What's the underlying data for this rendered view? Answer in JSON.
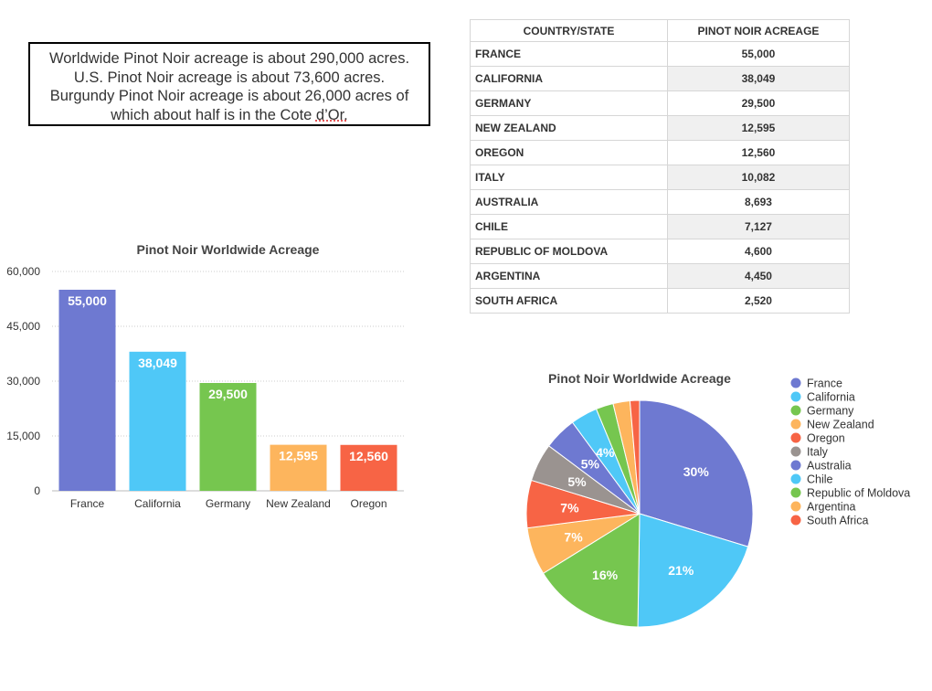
{
  "note": {
    "line1": "Worldwide Pinot Noir acreage is about 290,000 acres.",
    "line2": "U.S. Pinot Noir acreage is about 73,600 acres.",
    "line3_prefix": "Burgundy Pinot Noir acreage is about 26,000 acres of which about half is in the Cote ",
    "line3_suffix": "d’Or."
  },
  "table": {
    "headers": [
      "COUNTRY/STATE",
      "PINOT NOIR ACREAGE"
    ],
    "rows": [
      {
        "country": "FRANCE",
        "acreage": "55,000"
      },
      {
        "country": "CALIFORNIA",
        "acreage": "38,049"
      },
      {
        "country": "GERMANY",
        "acreage": "29,500"
      },
      {
        "country": "NEW ZEALAND",
        "acreage": "12,595"
      },
      {
        "country": "OREGON",
        "acreage": "12,560"
      },
      {
        "country": "ITALY",
        "acreage": "10,082"
      },
      {
        "country": "AUSTRALIA",
        "acreage": "8,693"
      },
      {
        "country": "CHILE",
        "acreage": "7,127"
      },
      {
        "country": "REPUBLIC OF MOLDOVA",
        "acreage": "4,600"
      },
      {
        "country": "ARGENTINA",
        "acreage": "4,450"
      },
      {
        "country": "SOUTH AFRICA",
        "acreage": "2,520"
      }
    ]
  },
  "chart_data": [
    {
      "type": "bar",
      "title": "Pinot Noir Worldwide Acreage",
      "categories": [
        "France",
        "California",
        "Germany",
        "New Zealand",
        "Oregon"
      ],
      "values": [
        55000,
        38049,
        29500,
        12595,
        12560
      ],
      "value_labels": [
        "55,000",
        "38,049",
        "29,500",
        "12,595",
        "12,560"
      ],
      "colors": [
        "#6e79d1",
        "#4fc8f7",
        "#76c64f",
        "#fdb55d",
        "#f76445"
      ],
      "ylim": [
        0,
        60000
      ],
      "yticks": [
        0,
        15000,
        30000,
        45000,
        60000
      ],
      "ytick_labels": [
        "0",
        "15,000",
        "30,000",
        "45,000",
        "60,000"
      ],
      "xlabel": "",
      "ylabel": "",
      "grid": true
    },
    {
      "type": "pie",
      "title": "Pinot Noir Worldwide Acreage",
      "labels": [
        "France",
        "California",
        "Germany",
        "New Zealand",
        "Oregon",
        "Italy",
        "Australia",
        "Chile",
        "Republic of Moldova",
        "Argentina",
        "South Africa"
      ],
      "values": [
        55000,
        38049,
        29500,
        12595,
        12560,
        10082,
        8693,
        7127,
        4600,
        4450,
        2520
      ],
      "slice_labels": [
        "30%",
        "21%",
        "16%",
        "7%",
        "7%",
        "5%",
        "5%",
        "4%",
        "",
        "",
        ""
      ],
      "colors": [
        "#6e79d1",
        "#4fc8f7",
        "#76c64f",
        "#fdb55d",
        "#f76445",
        "#9a9390",
        "#6e79d1",
        "#4fc8f7",
        "#76c64f",
        "#fdb55d",
        "#f76445"
      ],
      "legend_position": "right"
    }
  ]
}
